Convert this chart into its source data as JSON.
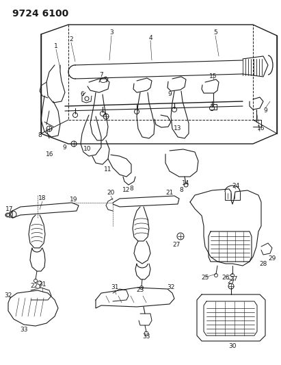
{
  "title": "9724 6100",
  "bg_color": "#ffffff",
  "line_color": "#1a1a1a",
  "title_fontsize": 10,
  "label_fontsize": 6.5,
  "fig_w": 4.11,
  "fig_h": 5.33,
  "dpi": 100
}
